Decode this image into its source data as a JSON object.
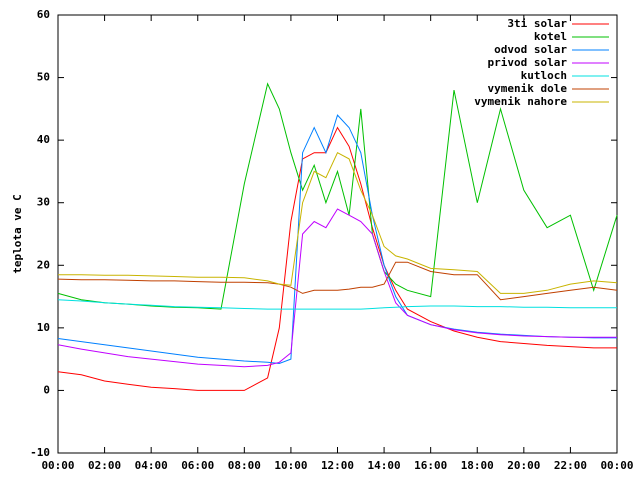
{
  "chart_data": {
    "type": "line",
    "y_label": "teplota ve C",
    "x": [
      0,
      1,
      2,
      3,
      4,
      5,
      6,
      7,
      8,
      9,
      9.5,
      10,
      10.5,
      11,
      11.5,
      12,
      12.5,
      13,
      13.5,
      14,
      14.5,
      15,
      16,
      17,
      18,
      19,
      20,
      21,
      22,
      23,
      24
    ],
    "xlim": [
      0,
      24
    ],
    "xticks": [
      {
        "value": 0,
        "label": "00:00"
      },
      {
        "value": 2,
        "label": "02:00"
      },
      {
        "value": 4,
        "label": "04:00"
      },
      {
        "value": 6,
        "label": "06:00"
      },
      {
        "value": 8,
        "label": "08:00"
      },
      {
        "value": 10,
        "label": "10:00"
      },
      {
        "value": 12,
        "label": "12:00"
      },
      {
        "value": 14,
        "label": "14:00"
      },
      {
        "value": 16,
        "label": "16:00"
      },
      {
        "value": 18,
        "label": "18:00"
      },
      {
        "value": 20,
        "label": "20:00"
      },
      {
        "value": 22,
        "label": "22:00"
      },
      {
        "value": 24,
        "label": "00:00"
      }
    ],
    "ylim": [
      -10,
      60
    ],
    "yticks": [
      -10,
      0,
      10,
      20,
      30,
      40,
      50,
      60
    ],
    "grid": false,
    "legend": "top-right",
    "series": [
      {
        "name": "3ti solar",
        "color": "#ff0000",
        "values": [
          3,
          2.5,
          1.5,
          1,
          0.5,
          0.3,
          0,
          0,
          0,
          2,
          10,
          27,
          37,
          38,
          38,
          42,
          39,
          33,
          26,
          20,
          16,
          13,
          11,
          9.5,
          8.5,
          7.8,
          7.5,
          7.2,
          7,
          6.8,
          6.8
        ]
      },
      {
        "name": "kotel",
        "color": "#00c000",
        "values": [
          15.5,
          14.5,
          14,
          13.8,
          13.5,
          13.3,
          13.2,
          13,
          33,
          49,
          45,
          38,
          32,
          36,
          30,
          35,
          28,
          45,
          25,
          19,
          17,
          16,
          15,
          48,
          30,
          45,
          32,
          26,
          28,
          16,
          28
        ]
      },
      {
        "name": "odvod solar",
        "color": "#0080ff",
        "values": [
          8.3,
          7.8,
          7.3,
          6.8,
          6.3,
          5.8,
          5.3,
          5,
          4.7,
          4.5,
          4.3,
          5,
          38,
          42,
          38,
          44,
          42,
          38,
          28,
          20,
          15,
          12,
          10.5,
          9.8,
          9.3,
          9,
          8.8,
          8.6,
          8.5,
          8.4,
          8.4
        ]
      },
      {
        "name": "privod solar",
        "color": "#c000ff",
        "values": [
          7.3,
          6.6,
          6,
          5.4,
          5,
          4.6,
          4.2,
          4,
          3.8,
          4,
          4.5,
          6,
          25,
          27,
          26,
          29,
          28,
          27,
          25,
          19,
          14,
          12,
          10.5,
          9.7,
          9.2,
          8.9,
          8.7,
          8.6,
          8.5,
          8.5,
          8.5
        ]
      },
      {
        "name": "kutloch",
        "color": "#00e0e0",
        "values": [
          14.5,
          14.3,
          14,
          13.8,
          13.6,
          13.4,
          13.3,
          13.2,
          13.1,
          13,
          13,
          13,
          13,
          13,
          13,
          13,
          13,
          13,
          13.1,
          13.2,
          13.3,
          13.4,
          13.5,
          13.5,
          13.4,
          13.4,
          13.3,
          13.3,
          13.2,
          13.2,
          13.2
        ]
      },
      {
        "name": "vymenik dole",
        "color": "#c04000",
        "values": [
          17.8,
          17.7,
          17.7,
          17.6,
          17.5,
          17.5,
          17.4,
          17.3,
          17.3,
          17.2,
          17,
          16.5,
          15.5,
          16,
          16,
          16,
          16.2,
          16.5,
          16.5,
          17,
          20.5,
          20.5,
          19,
          18.5,
          18.5,
          14.5,
          15,
          15.5,
          16,
          16.5,
          16
        ]
      },
      {
        "name": "vymenik nahore",
        "color": "#c8b400",
        "values": [
          18.5,
          18.5,
          18.4,
          18.4,
          18.3,
          18.2,
          18.1,
          18.1,
          18,
          17.5,
          17,
          16.8,
          30,
          35,
          34,
          38,
          37,
          32,
          28,
          23,
          21.5,
          21,
          19.5,
          19.3,
          19,
          15.5,
          15.5,
          16,
          17,
          17.5,
          17.2
        ]
      }
    ]
  }
}
